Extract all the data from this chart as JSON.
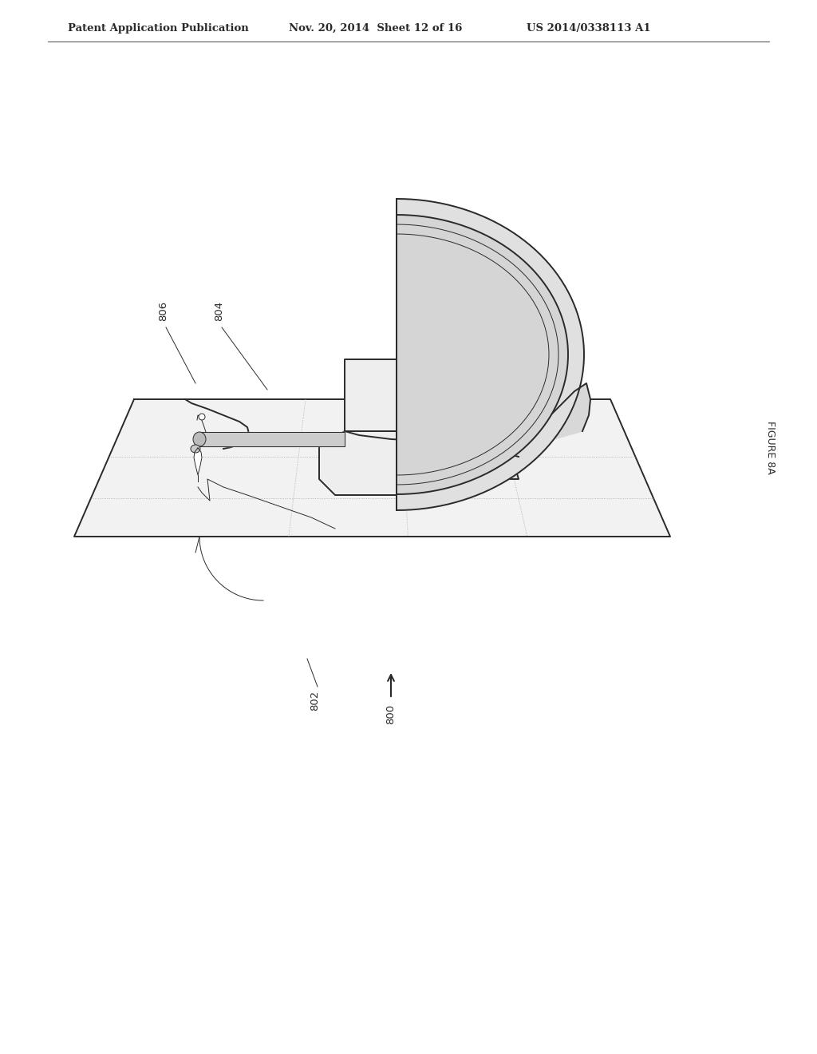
{
  "bg_color": "#ffffff",
  "line_color": "#2a2a2a",
  "fill_light_gray": "#d0d0d0",
  "fill_mid_gray": "#c0c0c0",
  "fill_lighter": "#e8e8e8",
  "fill_dot": "#d8d8d8",
  "header_text": "Patent Application Publication",
  "header_date": "Nov. 20, 2014  Sheet 12 of 16",
  "header_patent": "US 2014/0338113 A1",
  "figure_label": "FIGURE 8A",
  "ref_800": "800",
  "ref_802": "802",
  "ref_804": "804",
  "ref_806": "806"
}
